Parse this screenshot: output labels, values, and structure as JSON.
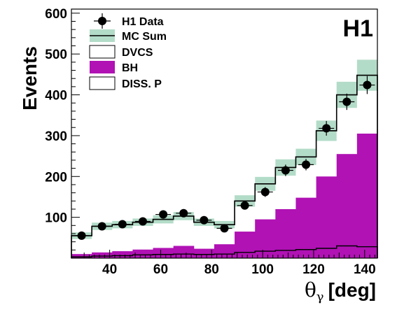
{
  "chart_data": {
    "type": "bar",
    "experiment_label": "H1",
    "ylabel": "Events",
    "xlabel_symbol": "θ",
    "xlabel_subscript": "γ",
    "xlabel_unit": "[deg]",
    "xlim": [
      25,
      145
    ],
    "ylim": [
      0,
      610
    ],
    "x_ticks": [
      40,
      60,
      80,
      100,
      120,
      140
    ],
    "y_ticks": [
      100,
      200,
      300,
      400,
      500,
      600
    ],
    "bin_edges": [
      25,
      33,
      41,
      49,
      57,
      65,
      73,
      81,
      89,
      97,
      105,
      113,
      121,
      129,
      137,
      145
    ],
    "series": [
      {
        "name": "H1 Data",
        "kind": "points",
        "x": [
          29,
          37,
          45,
          53,
          61,
          69,
          77,
          85,
          93,
          101,
          109,
          117,
          125,
          133,
          141
        ],
        "y": [
          55,
          78,
          83,
          90,
          107,
          110,
          93,
          73,
          129,
          162,
          215,
          229,
          318,
          383,
          424
        ],
        "err": [
          6,
          8,
          8,
          8,
          9,
          9,
          8,
          8,
          10,
          12,
          14,
          14,
          18,
          20,
          22
        ]
      },
      {
        "name": "MC Sum",
        "kind": "step",
        "values": [
          55,
          78,
          82,
          88,
          95,
          103,
          88,
          82,
          140,
          182,
          222,
          248,
          312,
          400,
          448
        ],
        "band": [
          8,
          9,
          9,
          9,
          10,
          10,
          9,
          9,
          14,
          17,
          20,
          20,
          25,
          32,
          38
        ]
      },
      {
        "name": "DVCS",
        "kind": "step",
        "values": [
          55,
          78,
          82,
          88,
          95,
          103,
          88,
          82,
          140,
          182,
          222,
          248,
          312,
          400,
          448
        ]
      },
      {
        "name": "BH",
        "kind": "area",
        "values": [
          10,
          14,
          17,
          21,
          25,
          30,
          23,
          34,
          65,
          95,
          120,
          148,
          200,
          255,
          305
        ]
      },
      {
        "name": "DISS. P",
        "kind": "step",
        "values": [
          3,
          5,
          6,
          8,
          9,
          10,
          9,
          10,
          14,
          17,
          19,
          21,
          24,
          30,
          28
        ]
      }
    ],
    "colors": {
      "band": "#b3dcc8",
      "bh": "#b012b4",
      "line": "#000000",
      "marker": "#000000"
    }
  }
}
